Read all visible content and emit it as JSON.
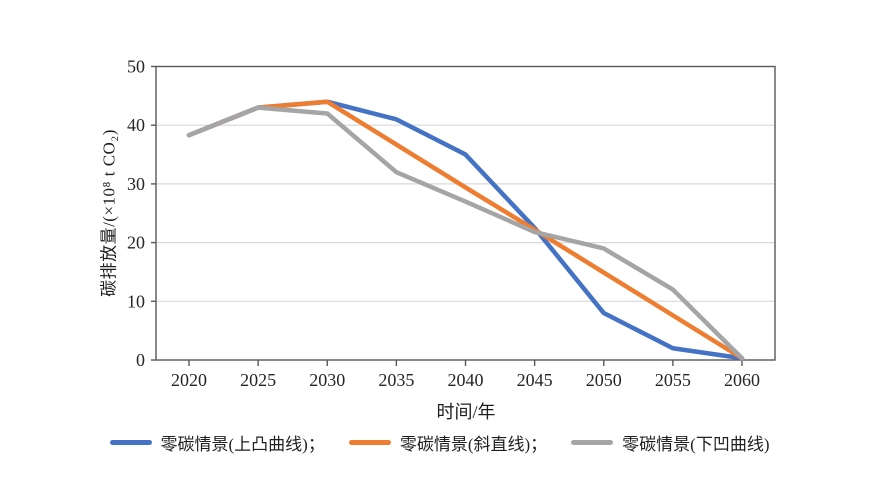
{
  "chart_data": {
    "type": "line",
    "x": [
      2020,
      2025,
      2030,
      2035,
      2040,
      2045,
      2050,
      2055,
      2060
    ],
    "series": [
      {
        "name": "零碳情景(上凸曲线)",
        "color": "#4472C4",
        "values": [
          38.3,
          43,
          44,
          41,
          35,
          22.5,
          8,
          2,
          0.3
        ]
      },
      {
        "name": "零碳情景(斜直线)",
        "color": "#ED7D31",
        "values": [
          38.3,
          43,
          44,
          36.7,
          29.4,
          22.2,
          14.9,
          7.6,
          0.3
        ]
      },
      {
        "name": "零碳情景(下凹曲线)",
        "color": "#A5A5A5",
        "values": [
          38.3,
          43,
          42,
          32,
          27,
          21.8,
          19,
          12,
          0.3
        ]
      }
    ],
    "xlabel": "时间/年",
    "ylabel": "碳排放量/(×10⁸ t CO₂)",
    "ylim": [
      0,
      50
    ],
    "yticks": [
      0,
      10,
      20,
      30,
      40,
      50
    ],
    "grid": "horizontal",
    "legend_position": "bottom",
    "legend_labels": [
      "零碳情景(上凸曲线)；",
      "零碳情景(斜直线)；",
      "零碳情景(下凹曲线)"
    ]
  },
  "style": {
    "axis_color": "#595959",
    "grid_color": "#d9d9d9",
    "tick_label_color": "#262626",
    "line_width": 4.5
  }
}
